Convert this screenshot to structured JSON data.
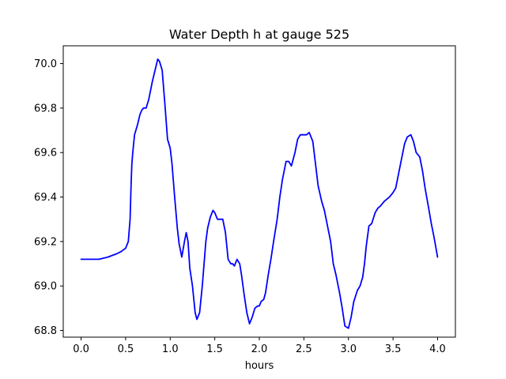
{
  "chart_data": {
    "type": "line",
    "title": "Water Depth h at gauge 525",
    "xlabel": "hours",
    "ylabel": "",
    "xlim": [
      -0.2,
      4.2
    ],
    "ylim": [
      68.77,
      70.08
    ],
    "xticks": [
      0.0,
      0.5,
      1.0,
      1.5,
      2.0,
      2.5,
      3.0,
      3.5,
      4.0
    ],
    "xtick_labels": [
      "0.0",
      "0.5",
      "1.0",
      "1.5",
      "2.0",
      "2.5",
      "3.0",
      "3.5",
      "4.0"
    ],
    "yticks": [
      68.8,
      69.0,
      69.2,
      69.4,
      69.6,
      69.8,
      70.0
    ],
    "ytick_labels": [
      "68.8",
      "69.0",
      "69.2",
      "69.4",
      "69.6",
      "69.8",
      "70.0"
    ],
    "grid": false,
    "series": [
      {
        "color": "#0000ff",
        "x": [
          0.0,
          0.1,
          0.2,
          0.3,
          0.4,
          0.45,
          0.5,
          0.53,
          0.55,
          0.56,
          0.565,
          0.57,
          0.58,
          0.6,
          0.63,
          0.66,
          0.68,
          0.7,
          0.73,
          0.76,
          0.8,
          0.83,
          0.86,
          0.88,
          0.91,
          0.94,
          0.97,
          1.0,
          1.02,
          1.05,
          1.08,
          1.1,
          1.13,
          1.16,
          1.18,
          1.2,
          1.22,
          1.25,
          1.28,
          1.3,
          1.33,
          1.36,
          1.38,
          1.4,
          1.42,
          1.45,
          1.48,
          1.5,
          1.53,
          1.56,
          1.59,
          1.62,
          1.65,
          1.68,
          1.7,
          1.72,
          1.75,
          1.78,
          1.8,
          1.83,
          1.86,
          1.89,
          1.92,
          1.95,
          1.98,
          2.0,
          2.02,
          2.05,
          2.07,
          2.1,
          2.13,
          2.16,
          2.2,
          2.23,
          2.26,
          2.3,
          2.33,
          2.36,
          2.4,
          2.43,
          2.46,
          2.5,
          2.53,
          2.56,
          2.6,
          2.63,
          2.66,
          2.7,
          2.73,
          2.76,
          2.8,
          2.83,
          2.86,
          2.9,
          2.93,
          2.96,
          3.0,
          3.03,
          3.06,
          3.1,
          3.13,
          3.16,
          3.18,
          3.2,
          3.23,
          3.26,
          3.3,
          3.33,
          3.36,
          3.4,
          3.43,
          3.46,
          3.5,
          3.53,
          3.56,
          3.6,
          3.63,
          3.66,
          3.7,
          3.73,
          3.76,
          3.8,
          3.83,
          3.86,
          3.9,
          3.93,
          3.96,
          4.0
        ],
        "y": [
          69.12,
          69.12,
          69.12,
          69.13,
          69.145,
          69.155,
          69.17,
          69.2,
          69.3,
          69.44,
          69.5,
          69.55,
          69.6,
          69.68,
          69.72,
          69.77,
          69.79,
          69.8,
          69.8,
          69.84,
          69.92,
          69.97,
          70.02,
          70.01,
          69.97,
          69.82,
          69.66,
          69.62,
          69.55,
          69.4,
          69.26,
          69.19,
          69.13,
          69.2,
          69.24,
          69.2,
          69.08,
          69.0,
          68.88,
          68.85,
          68.88,
          69.0,
          69.1,
          69.2,
          69.26,
          69.31,
          69.34,
          69.33,
          69.3,
          69.3,
          69.3,
          69.24,
          69.12,
          69.1,
          69.1,
          69.09,
          69.12,
          69.1,
          69.05,
          68.96,
          68.88,
          68.83,
          68.86,
          68.9,
          68.91,
          68.91,
          68.93,
          68.94,
          68.97,
          69.05,
          69.12,
          69.2,
          69.3,
          69.4,
          69.48,
          69.56,
          69.56,
          69.54,
          69.6,
          69.66,
          69.68,
          69.68,
          69.68,
          69.69,
          69.65,
          69.55,
          69.45,
          69.38,
          69.34,
          69.28,
          69.2,
          69.1,
          69.05,
          68.97,
          68.9,
          68.82,
          68.81,
          68.86,
          68.93,
          68.98,
          69.0,
          69.04,
          69.1,
          69.18,
          69.27,
          69.28,
          69.33,
          69.35,
          69.36,
          69.38,
          69.39,
          69.4,
          69.42,
          69.44,
          69.5,
          69.58,
          69.64,
          69.67,
          69.68,
          69.65,
          69.6,
          69.58,
          69.52,
          69.44,
          69.35,
          69.28,
          69.22,
          69.13
        ]
      }
    ]
  }
}
